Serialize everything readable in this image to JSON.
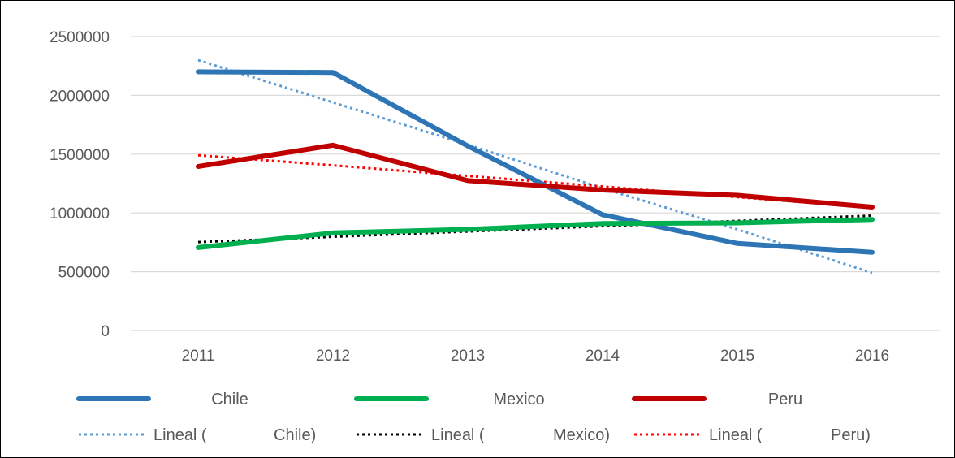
{
  "chart_data": {
    "type": "line",
    "title": "",
    "xlabel": "",
    "ylabel": "",
    "categories": [
      "2011",
      "2012",
      "2013",
      "2014",
      "2015",
      "2016"
    ],
    "ylim": [
      0,
      2500000
    ],
    "yticks": [
      "0",
      "500000",
      "1000000",
      "1500000",
      "2000000",
      "2500000"
    ],
    "grid": true,
    "legend_position": "bottom",
    "series": [
      {
        "name": "Chile",
        "values": [
          2200000,
          2195000,
          1570000,
          985000,
          740000,
          665000
        ],
        "color": "#2E75B6",
        "style": "solid"
      },
      {
        "name": "Mexico",
        "values": [
          705000,
          830000,
          860000,
          910000,
          915000,
          945000
        ],
        "color": "#00B050",
        "style": "solid"
      },
      {
        "name": "Peru",
        "values": [
          1395000,
          1575000,
          1275000,
          1195000,
          1150000,
          1050000
        ],
        "color": "#C00000",
        "style": "solid"
      }
    ],
    "trendlines": [
      {
        "name_prefix": "Lineal (",
        "name_series": "Chile)",
        "values": [
          2300000,
          1940000,
          1580000,
          1210000,
          860000,
          490000
        ],
        "color": "#5B9BD5",
        "style": "dotted"
      },
      {
        "name_prefix": "Lineal (",
        "name_series": "Mexico)",
        "values": [
          752000,
          797000,
          842000,
          887000,
          932000,
          977000
        ],
        "color": "#000000",
        "style": "dotted"
      },
      {
        "name_prefix": "Lineal (",
        "name_series": "Peru)",
        "values": [
          1490000,
          1405000,
          1315000,
          1225000,
          1135000,
          1045000
        ],
        "color": "#FF0000",
        "style": "dotted"
      }
    ]
  }
}
